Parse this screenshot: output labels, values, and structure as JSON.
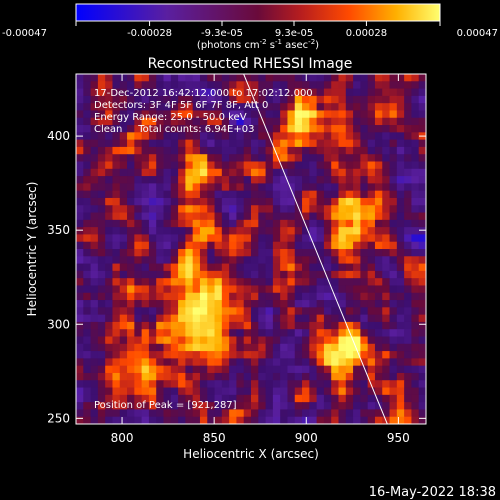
{
  "chart_data": {
    "type": "heatmap",
    "title": "Reconstructed RHESSI Image",
    "xlabel": "Heliocentric X (arcsec)",
    "ylabel": "Heliocentric Y (arcsec)",
    "xlim": [
      775,
      965
    ],
    "ylim": [
      247,
      433
    ],
    "x_ticks": [
      800,
      850,
      900,
      950
    ],
    "y_ticks": [
      250,
      300,
      350,
      400
    ],
    "colorbar": {
      "min": -0.00047,
      "max": 0.00047,
      "tick_values": [
        -0.00047,
        -0.00028,
        -9.3e-05,
        9.3e-05,
        0.00028,
        0.00047
      ],
      "tick_labels": [
        "-0.00047",
        "-0.00028",
        "-9.3e-05",
        "9.3e-05",
        "0.00028",
        "0.00047"
      ],
      "units_label": "(photons cm",
      "units_exp1": "-2",
      "units_mid": " s",
      "units_exp2": "-1",
      "units_mid2": " asec",
      "units_exp3": "-2",
      "units_close": ")"
    },
    "annotations": {
      "line1": "17-Dec-2012 16:42:12.000 to 17:02:12.000",
      "line2": "Detectors: 3F 4F 5F 6F 7F 8F, Att 0",
      "line3": "Energy Range: 25.0 - 50.0 keV",
      "line4": "Clean     Total counts: 6.94E+03",
      "peak": "Position of Peak = [921,287]"
    },
    "limb_line": [
      [
        866,
        433
      ],
      [
        944,
        247
      ]
    ],
    "sources": [
      {
        "x": 895,
        "y": 405,
        "amp": 0.00047,
        "sx": 10,
        "sy": 9
      },
      {
        "x": 921,
        "y": 287,
        "amp": 0.00047,
        "sx": 9,
        "sy": 11
      },
      {
        "x": 843,
        "y": 305,
        "amp": 0.00044,
        "sx": 14,
        "sy": 18
      },
      {
        "x": 808,
        "y": 276,
        "amp": 0.00038,
        "sx": 10,
        "sy": 12
      },
      {
        "x": 840,
        "y": 368,
        "amp": 0.0003,
        "sx": 7,
        "sy": 20
      },
      {
        "x": 925,
        "y": 352,
        "amp": 0.00036,
        "sx": 10,
        "sy": 16
      },
      {
        "x": 888,
        "y": 330,
        "amp": 0.00022,
        "sx": 8,
        "sy": 10
      },
      {
        "x": 810,
        "y": 395,
        "amp": 0.00018,
        "sx": 8,
        "sy": 8
      },
      {
        "x": 945,
        "y": 410,
        "amp": 0.0002,
        "sx": 7,
        "sy": 8
      }
    ]
  },
  "footer": {
    "date": "16-May-2022 18:38"
  }
}
